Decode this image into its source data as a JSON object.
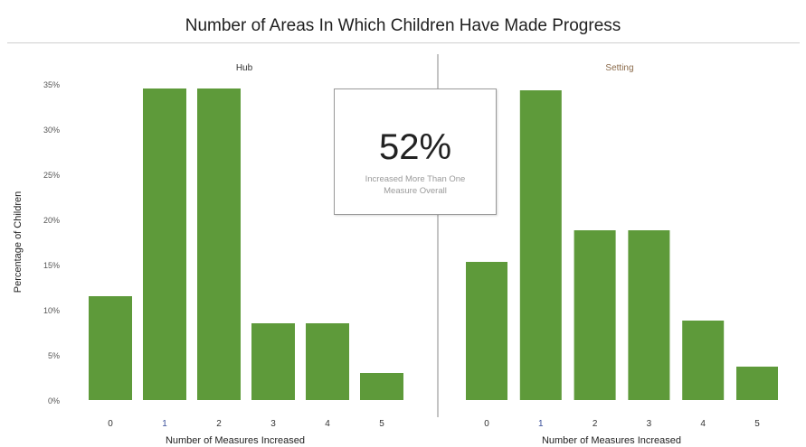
{
  "title": "Number of Areas In Which Children Have Made Progress",
  "callout": {
    "value": "52%",
    "caption": "Increased More Than One Measure Overall"
  },
  "colors": {
    "bar": "#5e9a3a",
    "tick_label": "#333333",
    "tick_label_highlight": "#3a4f9a",
    "divider": "#8a8a8a"
  },
  "chart_data": [
    {
      "type": "bar",
      "title": "Hub",
      "xlabel": "Number of Measures Increased",
      "ylabel": "Percentage of Children",
      "categories": [
        "0",
        "1",
        "2",
        "3",
        "4",
        "5"
      ],
      "values": [
        11.5,
        34.5,
        34.5,
        8.5,
        8.5,
        3.0
      ],
      "ylim": [
        0,
        35
      ],
      "yticks": [
        "0%",
        "5%",
        "10%",
        "15%",
        "20%",
        "25%",
        "30%",
        "35%"
      ],
      "grid": false,
      "legend": "none"
    },
    {
      "type": "bar",
      "title": "Setting",
      "xlabel": "Number of Measures Increased",
      "categories": [
        "0",
        "1",
        "2",
        "3",
        "4",
        "5"
      ],
      "values": [
        15.3,
        34.3,
        18.8,
        18.8,
        8.8,
        3.7
      ],
      "ylim": [
        0,
        35
      ],
      "grid": false,
      "legend": "none"
    }
  ]
}
